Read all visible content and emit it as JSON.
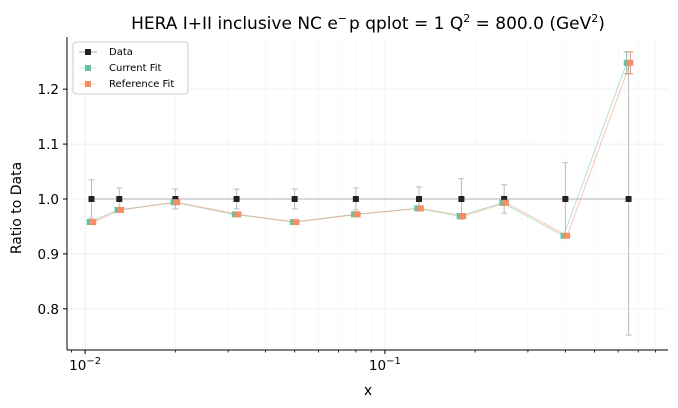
{
  "chart_data": {
    "type": "scatter",
    "title": "HERA I+II inclusive NC e",
    "title_sup1": "−",
    "title_mid": "p qplot = 1 Q",
    "title_sup2": "2",
    "title_mid2": " = 800.0 (GeV",
    "title_sup3": "2",
    "title_end": ")",
    "xlabel": "x",
    "ylabel": "Ratio to Data",
    "x_scale": "log",
    "xlim": [
      0.0087,
      0.88
    ],
    "ylim": [
      0.725,
      1.295
    ],
    "yticks": [
      0.8,
      0.9,
      1.0,
      1.1,
      1.2
    ],
    "ytick_labels": [
      "0.8",
      "0.9",
      "1.0",
      "1.1",
      "1.2"
    ],
    "xticks_major": [
      0.01,
      0.1
    ],
    "xtick_base": "10",
    "xtick_exponents": [
      "−2",
      "−1"
    ],
    "x": [
      0.0105,
      0.013,
      0.02,
      0.032,
      0.05,
      0.08,
      0.13,
      0.18,
      0.25,
      0.4,
      0.65
    ],
    "series": [
      {
        "name": "Data",
        "color": "#222222",
        "values": [
          1.0,
          1.0,
          1.0,
          1.0,
          1.0,
          1.0,
          1.0,
          1.0,
          1.0,
          1.0,
          1.0
        ],
        "errors": [
          0.035,
          0.02,
          0.018,
          0.018,
          0.018,
          0.02,
          0.022,
          0.037,
          0.026,
          0.066,
          0.248
        ]
      },
      {
        "name": "Current Fit",
        "color": "#66c2a5",
        "values": [
          0.958,
          0.98,
          0.994,
          0.972,
          0.958,
          0.972,
          0.983,
          0.969,
          0.993,
          0.933,
          1.248
        ],
        "errors": [
          0.0,
          0.0,
          0.0,
          0.0,
          0.0,
          0.0,
          0.0,
          0.0,
          0.0,
          0.0,
          0.02
        ]
      },
      {
        "name": "Reference Fit",
        "color": "#fc8d62",
        "values": [
          0.958,
          0.98,
          0.994,
          0.972,
          0.958,
          0.972,
          0.983,
          0.969,
          0.993,
          0.933,
          1.248
        ],
        "errors": [
          0.0,
          0.0,
          0.0,
          0.0,
          0.0,
          0.0,
          0.0,
          0.0,
          0.0,
          0.0,
          0.02
        ]
      }
    ],
    "grid": true,
    "legend_position": "top-left"
  }
}
